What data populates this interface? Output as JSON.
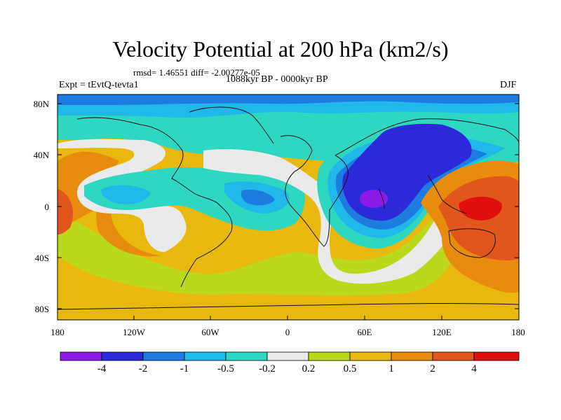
{
  "title": "Velocity Potential at 200 hPa (km2/s)",
  "stats_line": "rmsd= 1.46551 diff= -2.00277e-05",
  "period_line": "1088kyr BP - 0000kyr BP",
  "experiment": "Expt = tEvtQ-tevta1",
  "season": "DJF",
  "lat_labels": [
    "80N",
    "40N",
    "0",
    "40S",
    "80S"
  ],
  "lon_labels": [
    "180",
    "120W",
    "60W",
    "0",
    "60E",
    "120E",
    "180"
  ],
  "colorbar": {
    "colors": [
      "#8C1AE8",
      "#2A2AD8",
      "#1E7CE0",
      "#1FB8E8",
      "#2ED8C0",
      "#EAEAEA",
      "#BCD81C",
      "#E8B80E",
      "#E88C10",
      "#E0561C",
      "#E01010"
    ],
    "labels": [
      "-4",
      "-2",
      "-1",
      "-0.5",
      "-0.2",
      "0.2",
      "0.5",
      "1",
      "2",
      "4"
    ]
  }
}
